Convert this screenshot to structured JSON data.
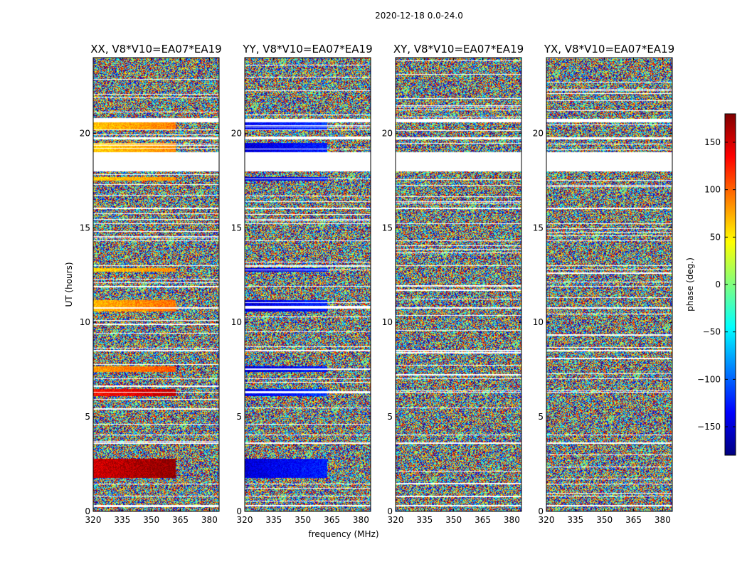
{
  "chart_data": {
    "type": "heatmap",
    "suptitle": "2020-12-18 0.0-24.0",
    "xlabel": "frequency (MHz)",
    "ylabel": "UT (hours)",
    "xlim": [
      320,
      385
    ],
    "ylim": [
      0,
      24
    ],
    "xticks": [
      "320",
      "335",
      "350",
      "365",
      "380"
    ],
    "yticks": [
      "0",
      "5",
      "10",
      "15",
      "20"
    ],
    "colorbar": {
      "label": "phase (deg.)",
      "range": [
        -180,
        180
      ],
      "ticks": [
        "−150",
        "−100",
        "−50",
        "0",
        "50",
        "100",
        "150"
      ],
      "colormap": [
        "#00007f",
        "#0000ff",
        "#007fff",
        "#00ffff",
        "#7fff7f",
        "#ffff00",
        "#ff7f00",
        "#ff0000",
        "#7f0000"
      ]
    },
    "panels": [
      {
        "title": "XX, V8*V10=EA07*EA19",
        "coherent_phase": 80,
        "coherent_rows": [
          [
            20.2,
            20.8,
            65
          ],
          [
            19.0,
            19.5,
            60
          ],
          [
            17.5,
            17.7,
            60
          ],
          [
            12.7,
            12.9,
            60
          ],
          [
            10.6,
            11.2,
            70
          ],
          [
            7.4,
            7.7,
            80
          ],
          [
            6.1,
            6.5,
            130
          ],
          [
            1.8,
            2.8,
            150
          ]
        ]
      },
      {
        "title": "YY, V8*V10=EA07*EA19",
        "coherent_phase": -150,
        "coherent_rows": [
          [
            20.2,
            20.8,
            -140
          ],
          [
            19.0,
            19.5,
            -150
          ],
          [
            17.5,
            17.7,
            -150
          ],
          [
            12.7,
            12.9,
            -150
          ],
          [
            10.6,
            11.2,
            -150
          ],
          [
            7.4,
            7.7,
            -150
          ],
          [
            6.1,
            6.5,
            -140
          ],
          [
            1.8,
            2.8,
            -150
          ]
        ]
      },
      {
        "title": "XY, V8*V10=EA07*EA19",
        "coherent_phase": null,
        "coherent_rows": []
      },
      {
        "title": "YX, V8*V10=EA07*EA19",
        "coherent_phase": null,
        "coherent_rows": []
      }
    ],
    "blank_ut_ranges": [
      [
        18.0,
        19.0
      ],
      [
        20.6,
        20.8
      ],
      [
        19.7,
        19.8
      ],
      [
        16.0,
        16.1
      ],
      [
        15.2,
        15.25
      ],
      [
        14.3,
        14.35
      ],
      [
        13.0,
        13.05
      ],
      [
        11.9,
        11.95
      ],
      [
        10.75,
        10.8
      ],
      [
        8.5,
        8.55
      ],
      [
        7.0,
        7.05
      ],
      [
        6.3,
        6.35
      ],
      [
        4.05,
        4.1
      ],
      [
        3.6,
        3.65
      ],
      [
        1.45,
        1.5
      ],
      [
        0.8,
        0.85
      ],
      [
        0.3,
        0.35
      ]
    ],
    "grid": false
  }
}
